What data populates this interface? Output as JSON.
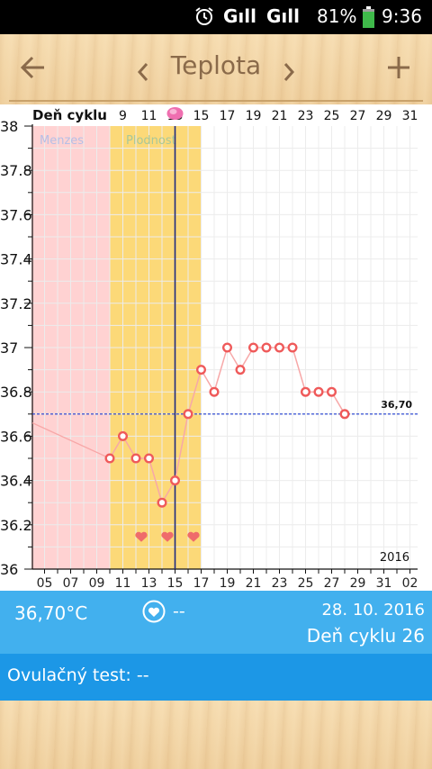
{
  "status_bar": {
    "signal1": "Gıll",
    "signal2": "Gıll",
    "battery": "81%",
    "time": "9:36"
  },
  "header": {
    "title": "Teplota",
    "back_icon": "arrow-left-icon",
    "prev_icon": "chevron-left-icon",
    "next_icon": "chevron-right-icon",
    "add_icon": "plus-icon"
  },
  "chart_data": {
    "type": "line",
    "top_axis_label": "Deň cyklu",
    "cycle_day_ticks": [
      "9",
      "11",
      "13",
      "15",
      "17",
      "19",
      "21",
      "23",
      "25",
      "27",
      "29",
      "31"
    ],
    "bottom_date_ticks": [
      "05",
      "07",
      "09",
      "11",
      "13",
      "15",
      "17",
      "19",
      "21",
      "23",
      "25",
      "27",
      "29",
      "31",
      "02"
    ],
    "ylim": [
      36,
      38
    ],
    "y_ticks": [
      "36",
      "36.2",
      "36.4",
      "36.6",
      "36.8",
      "37",
      "37.2",
      "37.4",
      "37.6",
      "37.8",
      "38"
    ],
    "x_range_dates": [
      4,
      33
    ],
    "menses_label": "Menzes",
    "menses_range": [
      4,
      10
    ],
    "fertile_label": "Plodnosť",
    "fertile_range": [
      10,
      17
    ],
    "current_day_marker": 15,
    "coverline": 36.7,
    "coverline_label": "36,70",
    "year_label": "2016",
    "heart_days": [
      12,
      14,
      16
    ],
    "series": [
      {
        "x": [
          10,
          11,
          12,
          13,
          14,
          15,
          16,
          17,
          18,
          19,
          20,
          21,
          22,
          23,
          24,
          25,
          26,
          27,
          28
        ],
        "y": [
          36.5,
          36.6,
          36.5,
          36.5,
          36.3,
          36.4,
          36.7,
          36.9,
          36.8,
          37.0,
          36.9,
          37.0,
          37.0,
          37.0,
          37.0,
          36.8,
          36.8,
          36.8,
          36.7
        ]
      }
    ],
    "colors": {
      "menses": "#ffd2d2",
      "fertile": "#fcd978",
      "line": "#f7a8a8",
      "marker": "#ef5a5a",
      "coverline": "#1e3cd0",
      "current_day": "#1e2a80",
      "heart": "#ef6b6b"
    }
  },
  "info_panel": {
    "temperature": "36,70°C",
    "heart_icon": "heart-circle-icon",
    "heart_value": "--",
    "date": "28. 10. 2016",
    "cycle_day": "Deň cyklu 26"
  },
  "ovulation": {
    "label": "Ovulačný test: --"
  }
}
